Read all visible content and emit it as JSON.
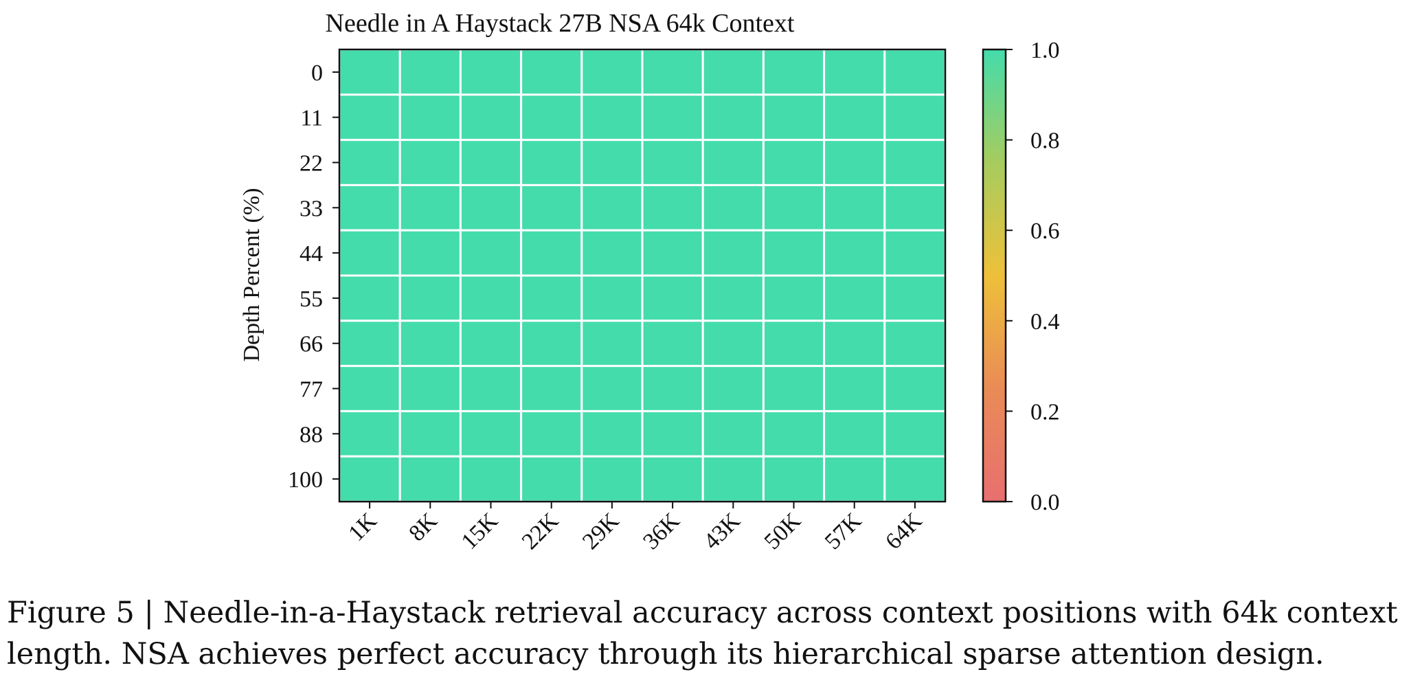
{
  "chart_data": {
    "type": "heatmap",
    "title": "Needle in A Haystack 27B NSA 64k Context",
    "xlabel": "",
    "ylabel": "Depth Percent (%)",
    "x_categories": [
      "1K",
      "8K",
      "15K",
      "22K",
      "29K",
      "36K",
      "43K",
      "50K",
      "57K",
      "64K"
    ],
    "y_categories": [
      "0",
      "11",
      "22",
      "33",
      "44",
      "55",
      "66",
      "77",
      "88",
      "100"
    ],
    "values": [
      [
        1.0,
        1.0,
        1.0,
        1.0,
        1.0,
        1.0,
        1.0,
        1.0,
        1.0,
        1.0
      ],
      [
        1.0,
        1.0,
        1.0,
        1.0,
        1.0,
        1.0,
        1.0,
        1.0,
        1.0,
        1.0
      ],
      [
        1.0,
        1.0,
        1.0,
        1.0,
        1.0,
        1.0,
        1.0,
        1.0,
        1.0,
        1.0
      ],
      [
        1.0,
        1.0,
        1.0,
        1.0,
        1.0,
        1.0,
        1.0,
        1.0,
        1.0,
        1.0
      ],
      [
        1.0,
        1.0,
        1.0,
        1.0,
        1.0,
        1.0,
        1.0,
        1.0,
        1.0,
        1.0
      ],
      [
        1.0,
        1.0,
        1.0,
        1.0,
        1.0,
        1.0,
        1.0,
        1.0,
        1.0,
        1.0
      ],
      [
        1.0,
        1.0,
        1.0,
        1.0,
        1.0,
        1.0,
        1.0,
        1.0,
        1.0,
        1.0
      ],
      [
        1.0,
        1.0,
        1.0,
        1.0,
        1.0,
        1.0,
        1.0,
        1.0,
        1.0,
        1.0
      ],
      [
        1.0,
        1.0,
        1.0,
        1.0,
        1.0,
        1.0,
        1.0,
        1.0,
        1.0,
        1.0
      ],
      [
        1.0,
        1.0,
        1.0,
        1.0,
        1.0,
        1.0,
        1.0,
        1.0,
        1.0,
        1.0
      ]
    ],
    "colorbar": {
      "range": [
        0.0,
        1.0
      ],
      "ticks": [
        "0.0",
        "0.2",
        "0.4",
        "0.6",
        "0.8",
        "1.0"
      ],
      "colors": [
        "#e86f6f",
        "#e98b56",
        "#eec03a",
        "#a6cc5e",
        "#44dcab"
      ]
    },
    "grid": true,
    "cell_border_color": "#ffffff",
    "x_tick_rotation": "45-degree"
  },
  "caption": {
    "line1": "Figure 5 | Needle-in-a-Haystack retrieval accuracy across context positions with 64k context",
    "line2": "length. NSA achieves perfect accuracy through its hierarchical sparse attention design."
  }
}
